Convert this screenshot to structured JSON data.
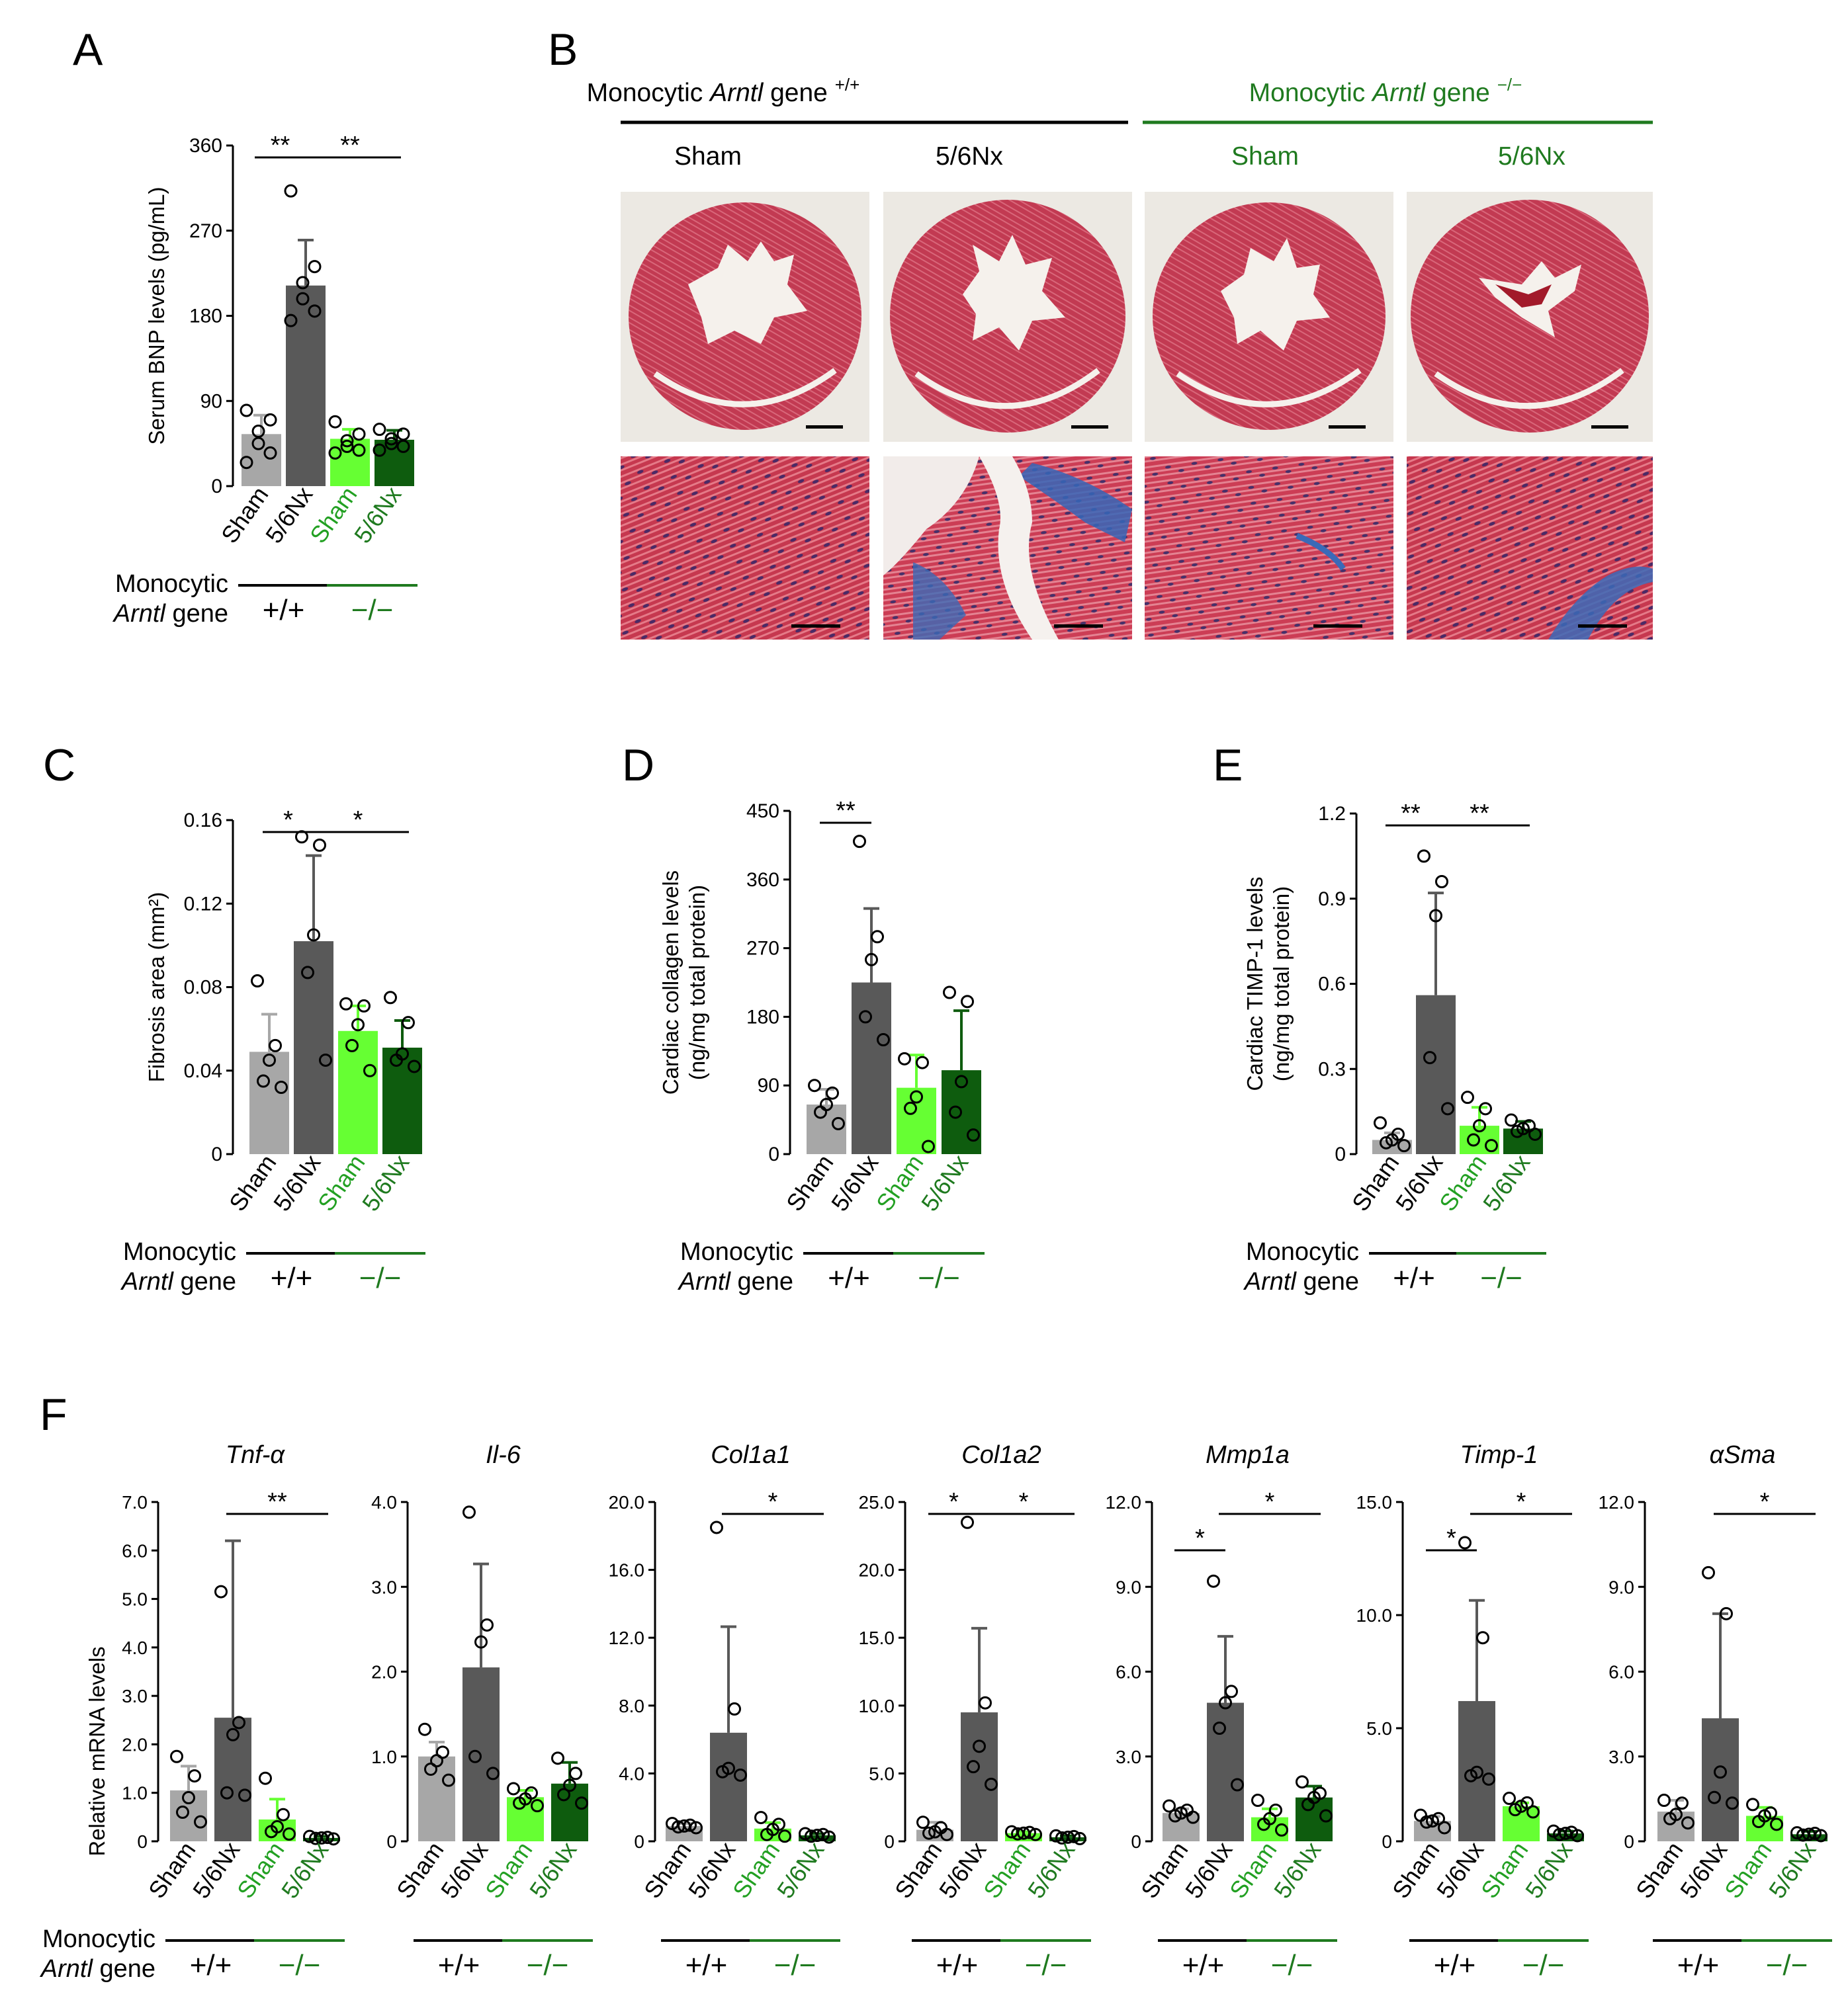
{
  "colors": {
    "sham_wt": "#a7a7a7",
    "nx_wt": "#595959",
    "sham_ko": "#66ff33",
    "nx_ko": "#0e5c0e",
    "green_text": "#1f7a1f",
    "sham_text_green": "#22a022",
    "black": "#000000",
    "err_sham_wt": "#a7a7a7",
    "err_nx_wt": "#595959",
    "err_sham_ko": "#66ff33",
    "err_nx_ko": "#0e5c0e"
  },
  "common": {
    "groups": [
      "Sham",
      "5/6Nx",
      "Sham",
      "5/6Nx"
    ],
    "genotype_label_1": "Monocytic",
    "genotype_label_2_italic": "Arntl",
    "genotype_label_2_rest": " gene",
    "genotype_wt": "+/+",
    "genotype_ko": "−/−"
  },
  "panel_b": {
    "letter": "B",
    "wt_header_pre": "Monocytic ",
    "wt_header_gene": "Arntl",
    "wt_header_post": " gene ",
    "wt_sup": "+/+",
    "ko_header_pre": "Monocytic ",
    "ko_header_gene": "Arntl",
    "ko_header_post": " gene ",
    "ko_sup": "−/−",
    "columns": [
      "Sham",
      "5/6Nx",
      "Sham",
      "5/6Nx"
    ]
  },
  "panel_f": {
    "letter": "F",
    "ylabel": "Relative mRNA levels"
  },
  "chart_data": [
    {
      "id": "A",
      "letter": "A",
      "type": "bar",
      "ylabel": [
        "Serum BNP levels (pg/mL)"
      ],
      "ylim": [
        0,
        360
      ],
      "ticks": [
        0,
        90,
        180,
        270,
        360
      ],
      "tick_labels": [
        "0",
        "90",
        "180",
        "270",
        "360"
      ],
      "categories": [
        "Sham",
        "5/6Nx",
        "Sham",
        "5/6Nx"
      ],
      "values": [
        55,
        212,
        50,
        49
      ],
      "errors": [
        20,
        48,
        10,
        10
      ],
      "points": [
        [
          80,
          70,
          58,
          45,
          35,
          25
        ],
        [
          312,
          232,
          215,
          198,
          185,
          175
        ],
        [
          68,
          55,
          48,
          42,
          38,
          35
        ],
        [
          60,
          55,
          50,
          45,
          42,
          38
        ]
      ],
      "sig": [
        {
          "from": 0,
          "to": 1,
          "label": "**",
          "level": 0
        },
        {
          "from": 1,
          "to": 3,
          "label": "**",
          "level": 0
        }
      ]
    },
    {
      "id": "C",
      "letter": "C",
      "type": "bar",
      "ylabel": [
        "Fibrosis area (mm²)"
      ],
      "ylim": [
        0,
        0.16
      ],
      "ticks": [
        0,
        0.04,
        0.08,
        0.12,
        0.16
      ],
      "tick_labels": [
        "0",
        "0.04",
        "0.08",
        "0.12",
        "0.16"
      ],
      "categories": [
        "Sham",
        "5/6Nx",
        "Sham",
        "5/6Nx"
      ],
      "values": [
        0.049,
        0.102,
        0.059,
        0.051
      ],
      "errors": [
        0.018,
        0.041,
        0.012,
        0.013
      ],
      "points": [
        [
          0.083,
          0.052,
          0.045,
          0.035,
          0.032
        ],
        [
          0.152,
          0.148,
          0.105,
          0.087,
          0.045
        ],
        [
          0.072,
          0.071,
          0.062,
          0.052,
          0.04
        ],
        [
          0.075,
          0.063,
          0.048,
          0.045,
          0.042
        ]
      ],
      "sig": [
        {
          "from": 0,
          "to": 1,
          "label": "*",
          "level": 0
        },
        {
          "from": 1,
          "to": 3,
          "label": "*",
          "level": 0
        }
      ]
    },
    {
      "id": "D",
      "letter": "D",
      "type": "bar",
      "ylabel": [
        "Cardiac collagen levels",
        "(ng/mg total protein)"
      ],
      "ylim": [
        0,
        450
      ],
      "ticks": [
        0,
        90,
        180,
        270,
        360,
        450
      ],
      "tick_labels": [
        "0",
        "90",
        "180",
        "270",
        "360",
        "450"
      ],
      "categories": [
        "Sham",
        "5/6Nx",
        "Sham",
        "5/6Nx"
      ],
      "values": [
        65,
        225,
        87,
        110
      ],
      "errors": [
        20,
        97,
        43,
        78
      ],
      "points": [
        [
          90,
          80,
          65,
          55,
          40
        ],
        [
          410,
          285,
          255,
          180,
          150
        ],
        [
          125,
          120,
          75,
          60,
          10
        ],
        [
          212,
          200,
          95,
          55,
          25
        ]
      ],
      "sig": [
        {
          "from": 0,
          "to": 1,
          "label": "**",
          "level": 0
        }
      ]
    },
    {
      "id": "E",
      "letter": "E",
      "type": "bar",
      "ylabel": [
        "Cardiac TIMP-1 levels",
        "(ng/mg total protein)"
      ],
      "ylim": [
        0,
        1.2
      ],
      "ticks": [
        0,
        0.3,
        0.6,
        0.9,
        1.2
      ],
      "tick_labels": [
        "0",
        "0.3",
        "0.6",
        "0.9",
        "1.2"
      ],
      "categories": [
        "Sham",
        "5/6Nx",
        "Sham",
        "5/6Nx"
      ],
      "values": [
        0.05,
        0.56,
        0.1,
        0.09
      ],
      "errors": [
        0.025,
        0.36,
        0.065,
        0.025
      ],
      "points": [
        [
          0.11,
          0.07,
          0.05,
          0.04,
          0.03
        ],
        [
          1.05,
          0.96,
          0.84,
          0.34,
          0.16
        ],
        [
          0.2,
          0.16,
          0.1,
          0.05,
          0.03
        ],
        [
          0.12,
          0.1,
          0.09,
          0.08,
          0.07
        ]
      ],
      "sig": [
        {
          "from": 0,
          "to": 1,
          "label": "**",
          "level": 0
        },
        {
          "from": 1,
          "to": 3,
          "label": "**",
          "level": 0
        }
      ]
    },
    {
      "id": "F1",
      "title": "Tnf-α",
      "type": "bar",
      "ylim": [
        0,
        7
      ],
      "ticks": [
        0,
        1,
        2,
        3,
        4,
        5,
        6,
        7
      ],
      "tick_labels": [
        "0",
        "1.0",
        "2.0",
        "3.0",
        "4.0",
        "5.0",
        "6.0",
        "7.0"
      ],
      "categories": [
        "Sham",
        "5/6Nx",
        "Sham",
        "5/6Nx"
      ],
      "values": [
        1.05,
        2.55,
        0.45,
        0.07
      ],
      "errors": [
        0.5,
        3.65,
        0.42,
        0.03
      ],
      "points": [
        [
          1.75,
          1.35,
          0.9,
          0.6,
          0.4
        ],
        [
          5.15,
          2.45,
          2.2,
          1.0,
          0.95
        ],
        [
          1.3,
          0.55,
          0.3,
          0.2,
          0.15
        ],
        [
          0.1,
          0.08,
          0.07,
          0.06,
          0.05
        ]
      ],
      "sig": [
        {
          "from": 1,
          "to": 3,
          "label": "**",
          "level": 0
        }
      ]
    },
    {
      "id": "F2",
      "title": "Il-6",
      "type": "bar",
      "ylim": [
        0,
        4
      ],
      "ticks": [
        0,
        1,
        2,
        3,
        4
      ],
      "tick_labels": [
        "0",
        "1.0",
        "2.0",
        "3.0",
        "4.0"
      ],
      "categories": [
        "Sham",
        "5/6Nx",
        "Sham",
        "5/6Nx"
      ],
      "values": [
        1.0,
        2.05,
        0.52,
        0.68
      ],
      "errors": [
        0.17,
        1.22,
        0.08,
        0.25
      ],
      "points": [
        [
          1.32,
          1.05,
          0.95,
          0.85,
          0.72
        ],
        [
          3.88,
          2.55,
          2.35,
          1.0,
          0.8
        ],
        [
          0.62,
          0.57,
          0.5,
          0.45,
          0.42
        ],
        [
          0.98,
          0.8,
          0.66,
          0.55,
          0.45
        ]
      ],
      "sig": []
    },
    {
      "id": "F3",
      "title": "Col1a1",
      "type": "bar",
      "ylim": [
        0,
        20
      ],
      "ticks": [
        0,
        4,
        8,
        12,
        16,
        20
      ],
      "tick_labels": [
        "0",
        "4.0",
        "8.0",
        "12.0",
        "16.0",
        "20.0"
      ],
      "categories": [
        "Sham",
        "5/6Nx",
        "Sham",
        "5/6Nx"
      ],
      "values": [
        0.9,
        6.4,
        0.75,
        0.35
      ],
      "errors": [
        0.15,
        6.25,
        0.35,
        0.1
      ],
      "points": [
        [
          1.05,
          0.95,
          0.9,
          0.85,
          0.8
        ],
        [
          18.5,
          7.8,
          4.3,
          4.1,
          3.9
        ],
        [
          1.4,
          1.0,
          0.7,
          0.4,
          0.3
        ],
        [
          0.45,
          0.4,
          0.35,
          0.3,
          0.25
        ]
      ],
      "sig": [
        {
          "from": 1,
          "to": 3,
          "label": "*",
          "level": 0
        }
      ]
    },
    {
      "id": "F4",
      "title": "Col1a2",
      "type": "bar",
      "ylim": [
        0,
        25
      ],
      "ticks": [
        0,
        5,
        10,
        15,
        20,
        25
      ],
      "tick_labels": [
        "0",
        "5.0",
        "10.0",
        "15.0",
        "20.0",
        "25.0"
      ],
      "categories": [
        "Sham",
        "5/6Nx",
        "Sham",
        "5/6Nx"
      ],
      "values": [
        0.85,
        9.5,
        0.6,
        0.3
      ],
      "errors": [
        0.55,
        6.2,
        0.1,
        0.1
      ],
      "points": [
        [
          1.4,
          1.0,
          0.7,
          0.6,
          0.5
        ],
        [
          23.5,
          10.2,
          7.0,
          5.5,
          4.2
        ],
        [
          0.7,
          0.65,
          0.6,
          0.55,
          0.5
        ],
        [
          0.4,
          0.35,
          0.3,
          0.25,
          0.2
        ]
      ],
      "sig": [
        {
          "from": 0,
          "to": 1,
          "label": "*",
          "level": 0
        },
        {
          "from": 1,
          "to": 3,
          "label": "*",
          "level": 0
        }
      ]
    },
    {
      "id": "F5",
      "title": "Mmp1a",
      "type": "bar",
      "ylim": [
        0,
        12
      ],
      "ticks": [
        0,
        3,
        6,
        9,
        12
      ],
      "tick_labels": [
        "0",
        "3.0",
        "6.0",
        "9.0",
        "12.0"
      ],
      "categories": [
        "Sham",
        "5/6Nx",
        "Sham",
        "5/6Nx"
      ],
      "values": [
        1.0,
        4.9,
        0.85,
        1.55
      ],
      "errors": [
        0.15,
        2.35,
        0.3,
        0.4
      ],
      "points": [
        [
          1.25,
          1.1,
          1.0,
          0.9,
          0.85
        ],
        [
          9.2,
          5.3,
          4.9,
          4.0,
          2.0
        ],
        [
          1.45,
          1.1,
          0.8,
          0.6,
          0.4
        ],
        [
          2.1,
          1.7,
          1.55,
          1.3,
          0.9
        ]
      ],
      "sig": [
        {
          "from": 0,
          "to": 1,
          "label": "*",
          "level": 1
        },
        {
          "from": 1,
          "to": 3,
          "label": "*",
          "level": 0
        }
      ]
    },
    {
      "id": "F6",
      "title": "Timp-1",
      "type": "bar",
      "ylim": [
        0,
        15
      ],
      "ticks": [
        0,
        5,
        10,
        15
      ],
      "tick_labels": [
        "0",
        "5.0",
        "10.0",
        "15.0"
      ],
      "categories": [
        "Sham",
        "5/6Nx",
        "Sham",
        "5/6Nx"
      ],
      "values": [
        0.9,
        6.2,
        1.55,
        0.35
      ],
      "errors": [
        0.2,
        4.45,
        0.15,
        0.1
      ],
      "points": [
        [
          1.15,
          1.0,
          0.9,
          0.85,
          0.6
        ],
        [
          13.2,
          9.0,
          3.05,
          2.9,
          2.75
        ],
        [
          1.9,
          1.7,
          1.55,
          1.4,
          1.3
        ],
        [
          0.45,
          0.4,
          0.35,
          0.3,
          0.25
        ]
      ],
      "sig": [
        {
          "from": 0,
          "to": 1,
          "label": "*",
          "level": 1
        },
        {
          "from": 1,
          "to": 3,
          "label": "*",
          "level": 0
        }
      ]
    },
    {
      "id": "F7",
      "title": "αSma",
      "type": "bar",
      "ylim": [
        0,
        12
      ],
      "ticks": [
        0,
        3,
        6,
        9,
        12
      ],
      "tick_labels": [
        "0",
        "3.0",
        "6.0",
        "9.0",
        "12.0"
      ],
      "categories": [
        "Sham",
        "5/6Nx",
        "Sham",
        "5/6Nx"
      ],
      "values": [
        1.05,
        4.35,
        0.9,
        0.25
      ],
      "errors": [
        0.4,
        3.7,
        0.3,
        0.1
      ],
      "points": [
        [
          1.45,
          1.35,
          0.95,
          0.8,
          0.65
        ],
        [
          9.5,
          8.05,
          2.45,
          1.55,
          1.35
        ],
        [
          1.3,
          1.0,
          0.9,
          0.7,
          0.6
        ],
        [
          0.3,
          0.28,
          0.25,
          0.22,
          0.2
        ]
      ],
      "sig": [
        {
          "from": 1,
          "to": 3,
          "label": "*",
          "level": 0
        }
      ]
    }
  ]
}
